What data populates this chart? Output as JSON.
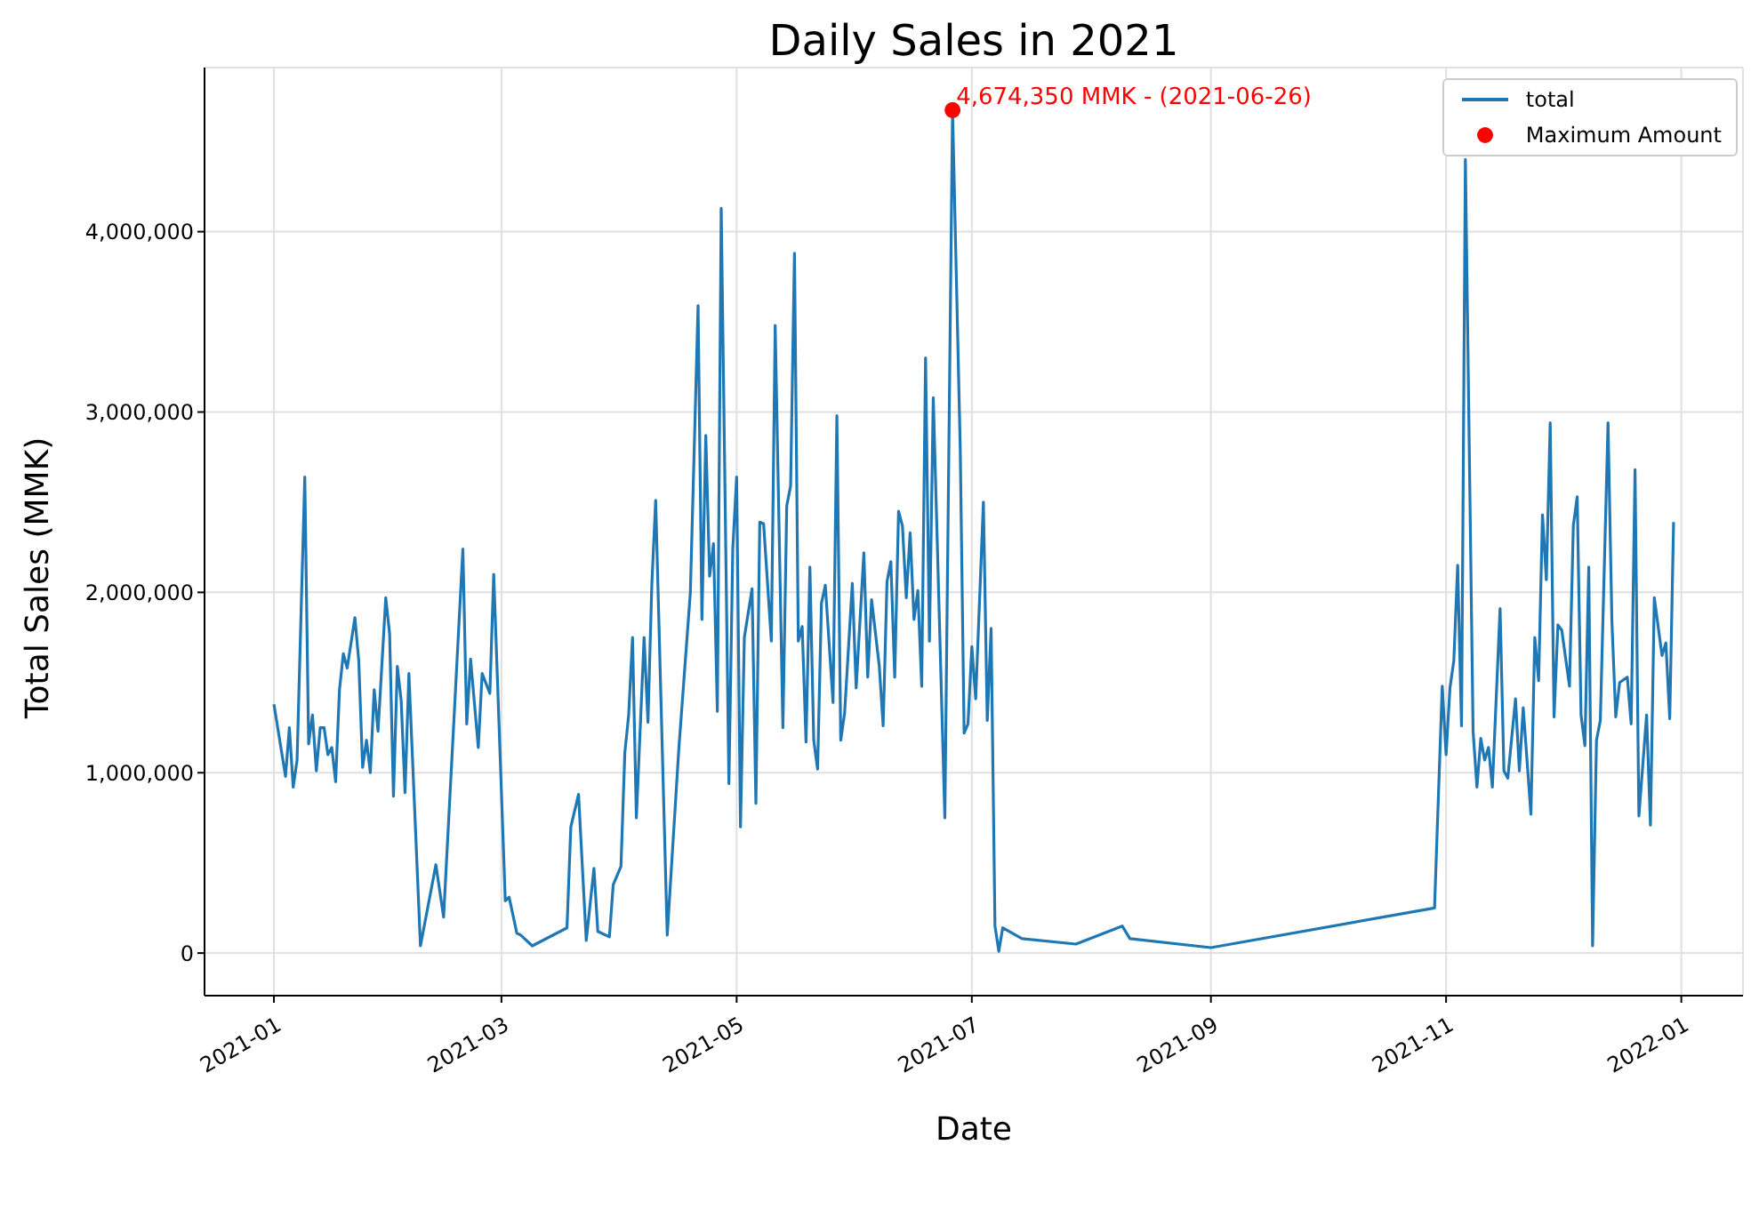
{
  "chart_data": {
    "type": "line",
    "title": "Daily Sales in 2021",
    "xlabel": "Date",
    "ylabel": "Total Sales (MMK)",
    "xlim": [
      "2020-12-14",
      "2022-01-17"
    ],
    "xticks": [
      "2021-01",
      "2021-03",
      "2021-05",
      "2021-07",
      "2021-09",
      "2021-11",
      "2022-01"
    ],
    "ylim": [
      -236000,
      4910000
    ],
    "yticks": [
      {
        "value": 0,
        "label": "0"
      },
      {
        "value": 1000000,
        "label": "1,000,000"
      },
      {
        "value": 2000000,
        "label": "2,000,000"
      },
      {
        "value": 3000000,
        "label": "3,000,000"
      },
      {
        "value": 4000000,
        "label": "4,000,000"
      }
    ],
    "grid": true,
    "legend": "top right",
    "annotations": [
      {
        "text": "4,674,350 MMK - (2021-06-26)",
        "x": "2021-06-26",
        "y": 4674350
      }
    ],
    "series": [
      {
        "name": "total",
        "color": "#1f77b4",
        "marker": "none",
        "x": [
          "2021-01-01",
          "2021-01-04",
          "2021-01-05",
          "2021-01-06",
          "2021-01-07",
          "2021-01-09",
          "2021-01-10",
          "2021-01-11",
          "2021-01-12",
          "2021-01-13",
          "2021-01-14",
          "2021-01-15",
          "2021-01-16",
          "2021-01-17",
          "2021-01-18",
          "2021-01-19",
          "2021-01-20",
          "2021-01-22",
          "2021-01-23",
          "2021-01-24",
          "2021-01-25",
          "2021-01-26",
          "2021-01-27",
          "2021-01-28",
          "2021-01-30",
          "2021-01-31",
          "2021-02-01",
          "2021-02-02",
          "2021-02-03",
          "2021-02-04",
          "2021-02-05",
          "2021-02-08",
          "2021-02-12",
          "2021-02-14",
          "2021-02-19",
          "2021-02-20",
          "2021-02-21",
          "2021-02-23",
          "2021-02-24",
          "2021-02-26",
          "2021-02-27",
          "2021-03-02",
          "2021-03-03",
          "2021-03-05",
          "2021-03-06",
          "2021-03-09",
          "2021-03-18",
          "2021-03-19",
          "2021-03-21",
          "2021-03-23",
          "2021-03-25",
          "2021-03-26",
          "2021-03-29",
          "2021-03-30",
          "2021-04-01",
          "2021-04-02",
          "2021-04-03",
          "2021-04-04",
          "2021-04-05",
          "2021-04-07",
          "2021-04-08",
          "2021-04-09",
          "2021-04-10",
          "2021-04-13",
          "2021-04-16",
          "2021-04-19",
          "2021-04-21",
          "2021-04-22",
          "2021-04-23",
          "2021-04-24",
          "2021-04-25",
          "2021-04-26",
          "2021-04-27",
          "2021-04-29",
          "2021-04-30",
          "2021-05-01",
          "2021-05-02",
          "2021-05-03",
          "2021-05-05",
          "2021-05-06",
          "2021-05-07",
          "2021-05-08",
          "2021-05-10",
          "2021-05-11",
          "2021-05-13",
          "2021-05-14",
          "2021-05-15",
          "2021-05-16",
          "2021-05-17",
          "2021-05-18",
          "2021-05-19",
          "2021-05-20",
          "2021-05-21",
          "2021-05-22",
          "2021-05-23",
          "2021-05-24",
          "2021-05-26",
          "2021-05-27",
          "2021-05-28",
          "2021-05-29",
          "2021-05-31",
          "2021-06-01",
          "2021-06-03",
          "2021-06-04",
          "2021-06-05",
          "2021-06-07",
          "2021-06-08",
          "2021-06-09",
          "2021-06-10",
          "2021-06-11",
          "2021-06-12",
          "2021-06-13",
          "2021-06-14",
          "2021-06-15",
          "2021-06-16",
          "2021-06-17",
          "2021-06-18",
          "2021-06-19",
          "2021-06-20",
          "2021-06-21",
          "2021-06-24",
          "2021-06-26",
          "2021-06-28",
          "2021-06-29",
          "2021-06-30",
          "2021-07-01",
          "2021-07-02",
          "2021-07-04",
          "2021-07-05",
          "2021-07-06",
          "2021-07-07",
          "2021-07-08",
          "2021-07-09",
          "2021-07-14",
          "2021-07-28",
          "2021-08-09",
          "2021-08-11",
          "2021-09-01",
          "2021-10-29",
          "2021-10-31",
          "2021-11-01",
          "2021-11-02",
          "2021-11-03",
          "2021-11-04",
          "2021-11-05",
          "2021-11-06",
          "2021-11-08",
          "2021-11-09",
          "2021-11-10",
          "2021-11-11",
          "2021-11-12",
          "2021-11-13",
          "2021-11-15",
          "2021-11-16",
          "2021-11-17",
          "2021-11-19",
          "2021-11-20",
          "2021-11-21",
          "2021-11-23",
          "2021-11-24",
          "2021-11-25",
          "2021-11-26",
          "2021-11-27",
          "2021-11-28",
          "2021-11-29",
          "2021-11-30",
          "2021-12-01",
          "2021-12-03",
          "2021-12-04",
          "2021-12-05",
          "2021-12-06",
          "2021-12-07",
          "2021-12-08",
          "2021-12-09",
          "2021-12-10",
          "2021-12-11",
          "2021-12-13",
          "2021-12-14",
          "2021-12-15",
          "2021-12-16",
          "2021-12-18",
          "2021-12-19",
          "2021-12-20",
          "2021-12-21",
          "2021-12-23",
          "2021-12-24",
          "2021-12-25",
          "2021-12-27",
          "2021-12-28",
          "2021-12-29",
          "2021-12-30"
        ],
        "values": [
          1380000,
          980000,
          1250000,
          920000,
          1070000,
          2640000,
          1160000,
          1320000,
          1010000,
          1250000,
          1250000,
          1100000,
          1140000,
          950000,
          1460000,
          1660000,
          1580000,
          1860000,
          1620000,
          1030000,
          1180000,
          1000000,
          1460000,
          1230000,
          1970000,
          1770000,
          870000,
          1590000,
          1400000,
          890000,
          1550000,
          40000,
          490000,
          200000,
          2240000,
          1270000,
          1630000,
          1140000,
          1550000,
          1440000,
          2100000,
          290000,
          310000,
          110000,
          100000,
          40000,
          140000,
          700000,
          880000,
          70000,
          470000,
          120000,
          90000,
          380000,
          480000,
          1110000,
          1320000,
          1750000,
          750000,
          1750000,
          1280000,
          2040000,
          2510000,
          100000,
          1130000,
          2000000,
          3590000,
          1850000,
          2870000,
          2090000,
          2270000,
          1340000,
          4130000,
          940000,
          2240000,
          2640000,
          700000,
          1750000,
          2020000,
          830000,
          2390000,
          2380000,
          1730000,
          3480000,
          1250000,
          2480000,
          2590000,
          3880000,
          1730000,
          1810000,
          1170000,
          2140000,
          1180000,
          1020000,
          1940000,
          2040000,
          1390000,
          2980000,
          1180000,
          1330000,
          2050000,
          1470000,
          2220000,
          1530000,
          1960000,
          1590000,
          1260000,
          2060000,
          2170000,
          1530000,
          2450000,
          2370000,
          1970000,
          2330000,
          1850000,
          2010000,
          1480000,
          3300000,
          1730000,
          3080000,
          750000,
          4674350,
          2790000,
          1220000,
          1270000,
          1700000,
          1410000,
          2500000,
          1290000,
          1800000,
          150000,
          10000,
          140000,
          80000,
          50000,
          150000,
          80000,
          30000,
          250000,
          1480000,
          1100000,
          1470000,
          1620000,
          2150000,
          1260000,
          4400000,
          1230000,
          920000,
          1190000,
          1070000,
          1140000,
          920000,
          1910000,
          1010000,
          970000,
          1410000,
          1010000,
          1360000,
          770000,
          1750000,
          1510000,
          2430000,
          2070000,
          2940000,
          1310000,
          1820000,
          1790000,
          1480000,
          2370000,
          2530000,
          1320000,
          1150000,
          2140000,
          40000,
          1180000,
          1290000,
          2940000,
          1840000,
          1310000,
          1500000,
          1530000,
          1270000,
          2680000,
          760000,
          1320000,
          710000,
          1970000,
          1650000,
          1720000,
          1300000,
          2390000
        ]
      },
      {
        "name": "Maximum Amount",
        "type": "scatter",
        "color": "#ff0000",
        "marker": "circle",
        "x": [
          "2021-06-26"
        ],
        "values": [
          4674350
        ]
      }
    ]
  }
}
